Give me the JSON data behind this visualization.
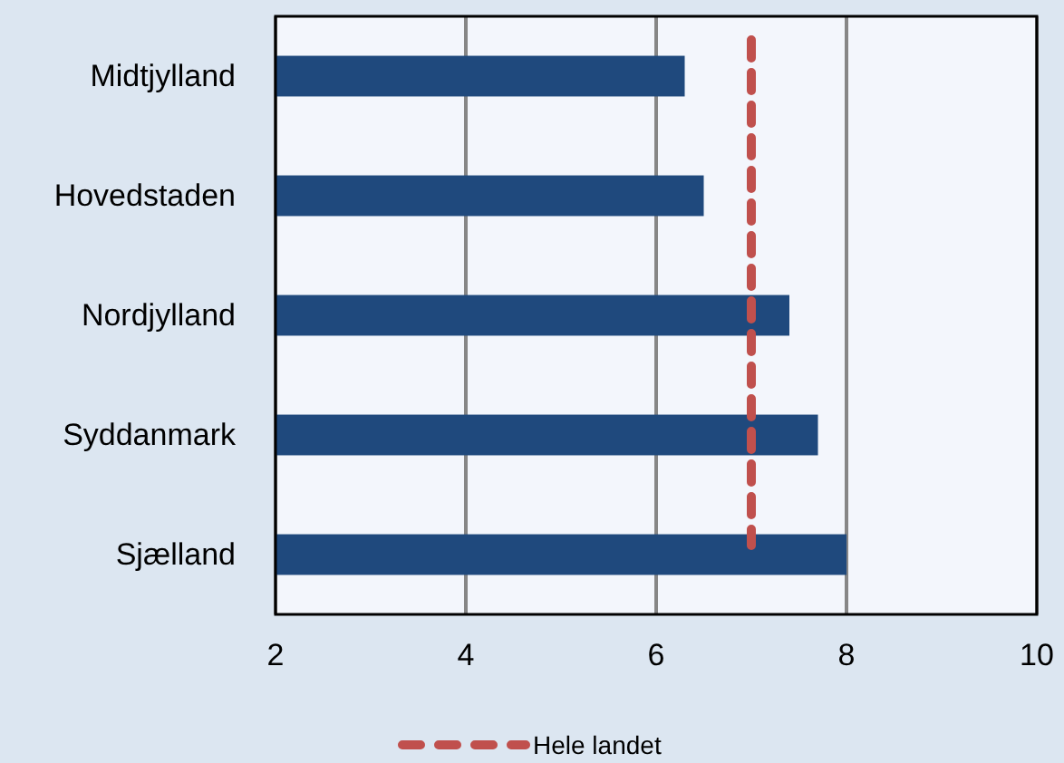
{
  "chart_data": {
    "type": "bar",
    "orientation": "horizontal",
    "categories": [
      "Midtjylland",
      "Hovedstaden",
      "Nordjylland",
      "Syddanmark",
      "Sjælland"
    ],
    "values": [
      6.3,
      6.5,
      7.4,
      7.7,
      8.0
    ],
    "color": "#1f497d",
    "xlim": [
      2,
      10
    ],
    "xticks": [
      2,
      4,
      6,
      8,
      10
    ],
    "grid": "x",
    "ref_lines": [
      {
        "axis": "x",
        "value": 7.0,
        "label": "Hele landet",
        "color": "#c0504d",
        "line_style": "dashed"
      }
    ],
    "legend": "bottom"
  }
}
